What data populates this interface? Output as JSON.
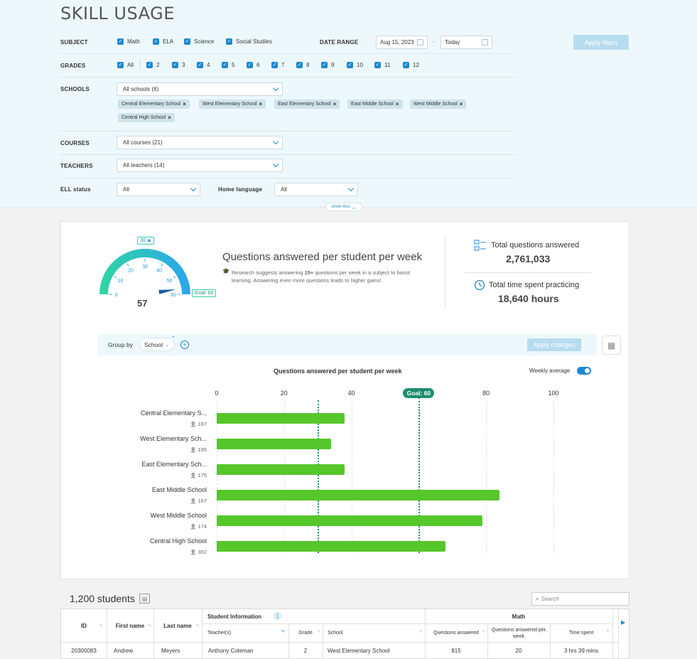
{
  "page_title": "SKILL USAGE",
  "filters": {
    "subject_label": "SUBJECT",
    "subjects": [
      "Math",
      "ELA",
      "Science",
      "Social Studies"
    ],
    "date_range_label": "DATE RANGE",
    "date_from": "Aug 15, 2023",
    "date_separator": "-",
    "date_to": "Today",
    "apply_label": "Apply filters",
    "grades_label": "GRADES",
    "grades": [
      "All",
      "2",
      "3",
      "4",
      "5",
      "6",
      "7",
      "8",
      "9",
      "10",
      "11",
      "12"
    ],
    "schools_label": "SCHOOLS",
    "schools_select": "All schools (6)",
    "school_chips": [
      "Central Elementary School",
      "West Elementary School",
      "East Elementary School",
      "East Middle School",
      "West Middle School",
      "Central High School"
    ],
    "courses_label": "COURSES",
    "courses_select": "All courses (21)",
    "teachers_label": "TEACHERS",
    "teachers_select": "All teachers (14)",
    "ell_label": "ELL status",
    "ell_select": "All",
    "home_language_label": "Home language",
    "home_language_select": "All",
    "show_less": "show less"
  },
  "gauge": {
    "value": "57",
    "goal_label": "Goal: 60",
    "top_badge": "30",
    "ticks": [
      "0",
      "10",
      "20",
      "30",
      "40",
      "50",
      "60"
    ],
    "value_number": 57,
    "goal_number": 60,
    "max": 60
  },
  "kpi": {
    "title": "Questions answered per student per week",
    "note_prefix": "Research suggests answering ",
    "note_bold": "15+",
    "note_rest": " questions per week in a subject to boost",
    "note_line2": "learning. Answering even more questions leads to higher gains!"
  },
  "stats": {
    "total_questions_label": "Total questions answered",
    "total_questions_value": "2,761,033",
    "total_time_label": "Total time spent practicing",
    "total_time_value": "18,640 hours"
  },
  "groupbar": {
    "group_by_label": "Group by",
    "group_value": "School",
    "apply_changes": "Apply changes"
  },
  "chart_data": {
    "type": "bar",
    "orientation": "horizontal",
    "title": "Questions answered per student per week",
    "toggle_label": "Weekly average",
    "xlim": [
      0,
      100
    ],
    "xticks": [
      "0",
      "20",
      "40",
      "80",
      "100"
    ],
    "goal_label": "Goal: 60",
    "goal_value": 60,
    "weekly_average_value": 30,
    "categories": [
      "Central Elementary S...",
      "West Elementary Sch...",
      "East Elementary Sch...",
      "East Middle School",
      "West Middle School",
      "Central High School"
    ],
    "counts": [
      "187",
      "195",
      "175",
      "167",
      "174",
      "302"
    ],
    "values": [
      38,
      34,
      38,
      84,
      79,
      68
    ],
    "bar_color": "#56c72a",
    "goal_color": "#1e8f6e"
  },
  "table": {
    "student_count": "1,200 students",
    "search_placeholder": "Search",
    "headers": {
      "id": "ID",
      "first_name": "First name",
      "last_name": "Last name",
      "student_info": "Student Information",
      "teachers": "Teacher(s)",
      "grade": "Grade",
      "school": "School",
      "math": "Math",
      "questions_answered": "Questions answered",
      "questions_per_week": "Questions answered per week",
      "time_spent": "Time spent"
    },
    "rows": [
      {
        "id": "20300083",
        "first_name": "Andrew",
        "last_name": "Meyers",
        "teacher": "Anthony Coleman",
        "grade": "2",
        "school": "West Elementary School",
        "questions_answered": "815",
        "questions_per_week": "20",
        "time_spent": "3 hrs 39 mins"
      }
    ]
  },
  "colors": {
    "accent": "#1e88d2",
    "filter_bg": "#edf8fc",
    "bar": "#56c72a",
    "gauge_start": "#2fd3a6",
    "gauge_end": "#2aa8e8"
  }
}
